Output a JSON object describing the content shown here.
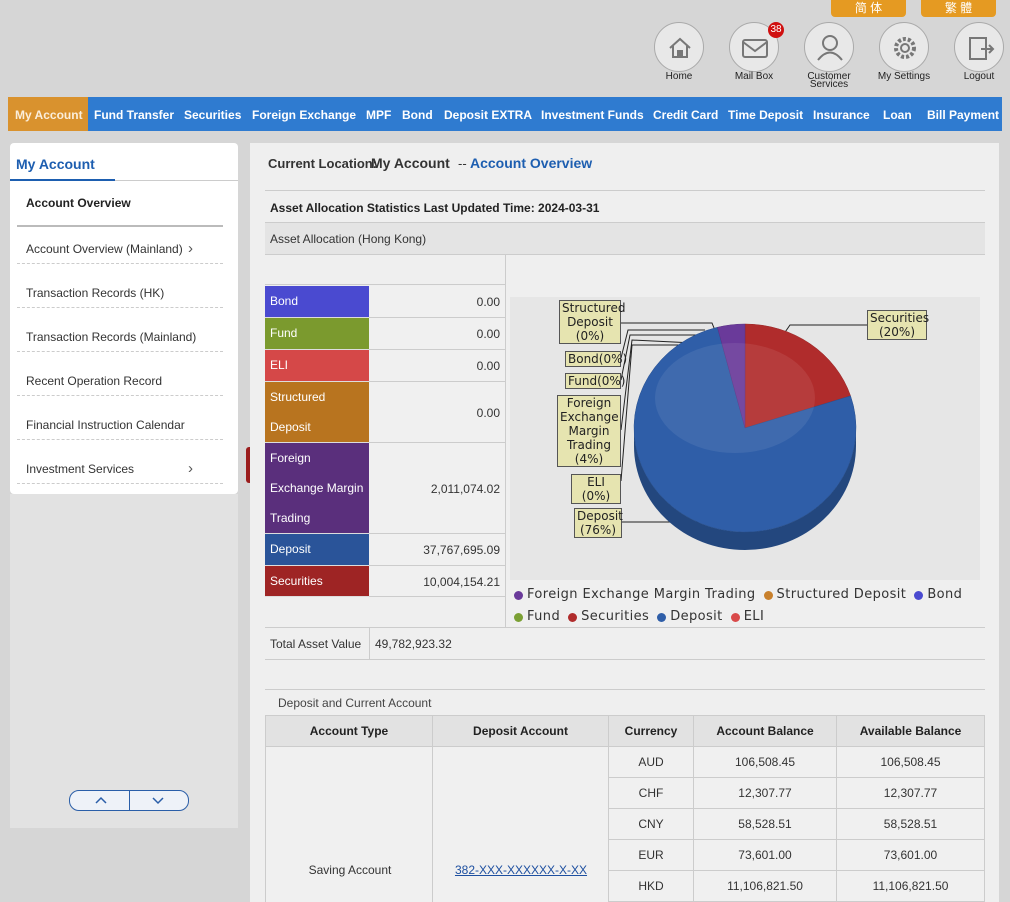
{
  "language_buttons": [
    "简 体",
    "繁 體"
  ],
  "top_icons": [
    {
      "label": "Home"
    },
    {
      "label": "Mail Box",
      "badge": "38"
    },
    {
      "label": "Customer Services"
    },
    {
      "label": "My Settings"
    },
    {
      "label": "Logout"
    }
  ],
  "nav": [
    "My Account",
    "Fund Transfer",
    "Securities",
    "Foreign Exchange",
    "MPF",
    "Bond",
    "Deposit EXTRA",
    "Investment Funds",
    "Credit Card",
    "Time Deposit",
    "Insurance",
    "Loan",
    "Bill Payment"
  ],
  "sidebar": {
    "title": "My Account",
    "items": [
      "Account Overview",
      "Account Overview (Mainland)",
      "Transaction Records (HK)",
      "Transaction Records (Mainland)",
      "Recent Operation Record",
      "Financial Instruction Calendar",
      "Investment Services"
    ]
  },
  "location": {
    "label": "Current Location:",
    "section": "My Account",
    "separator": "--",
    "page": "Account Overview"
  },
  "asset_allocation": {
    "title": "Asset Allocation Statistics Last Updated Time: 2024-03-31",
    "subtitle": "Asset Allocation (Hong Kong)",
    "rows": [
      {
        "name": "Bond",
        "color": "#4a4ad0",
        "amount": "0.00"
      },
      {
        "name": "Fund",
        "color": "#7b9a2e",
        "amount": "0.00"
      },
      {
        "name": "ELI",
        "color": "#d54848",
        "amount": "0.00"
      },
      {
        "name": "Structured Deposit",
        "color": "#b8741f",
        "amount": "0.00"
      },
      {
        "name": "Foreign Exchange Margin Trading",
        "color": "#5a2f7c",
        "amount": "2,011,074.02"
      },
      {
        "name": "Deposit",
        "color": "#2a5499",
        "amount": "37,767,695.09"
      },
      {
        "name": "Securities",
        "color": "#9e2424",
        "amount": "10,004,154.21"
      }
    ],
    "total_label": "Total Asset Value",
    "total_value": "49,782,923.32"
  },
  "chart_data": {
    "type": "pie",
    "categories": [
      "Foreign Exchange Margin Trading",
      "Structured Deposit",
      "Bond",
      "Fund",
      "Securities",
      "Deposit",
      "ELI"
    ],
    "values": [
      4,
      0,
      0,
      0,
      20,
      76,
      0
    ],
    "value_labels": [
      "Foreign Exchange Margin Trading (4%)",
      "Structured Deposit (0%)",
      "Bond(0%)",
      "Fund(0%)",
      "Securities (20%)",
      "Deposit (76%)",
      "ELI (0%)"
    ],
    "colors": [
      "#6a3a9a",
      "#c8802c",
      "#4a4ad0",
      "#7ba034",
      "#b02c2c",
      "#2f5ea8",
      "#d94a4a"
    ]
  },
  "deposit": {
    "title": "Deposit and Current Account",
    "headers": [
      "Account Type",
      "Deposit Account",
      "Currency",
      "Account Balance",
      "Available Balance"
    ],
    "account_type": "Saving Account",
    "account_number": "382-XXX-XXXXXX-X-XX",
    "rows": [
      {
        "currency": "AUD",
        "account_balance": "106,508.45",
        "available_balance": "106,508.45"
      },
      {
        "currency": "CHF",
        "account_balance": "12,307.77",
        "available_balance": "12,307.77"
      },
      {
        "currency": "CNY",
        "account_balance": "58,528.51",
        "available_balance": "58,528.51"
      },
      {
        "currency": "EUR",
        "account_balance": "73,601.00",
        "available_balance": "73,601.00"
      },
      {
        "currency": "HKD",
        "account_balance": "11,106,821.50",
        "available_balance": "11,106,821.50"
      }
    ]
  }
}
